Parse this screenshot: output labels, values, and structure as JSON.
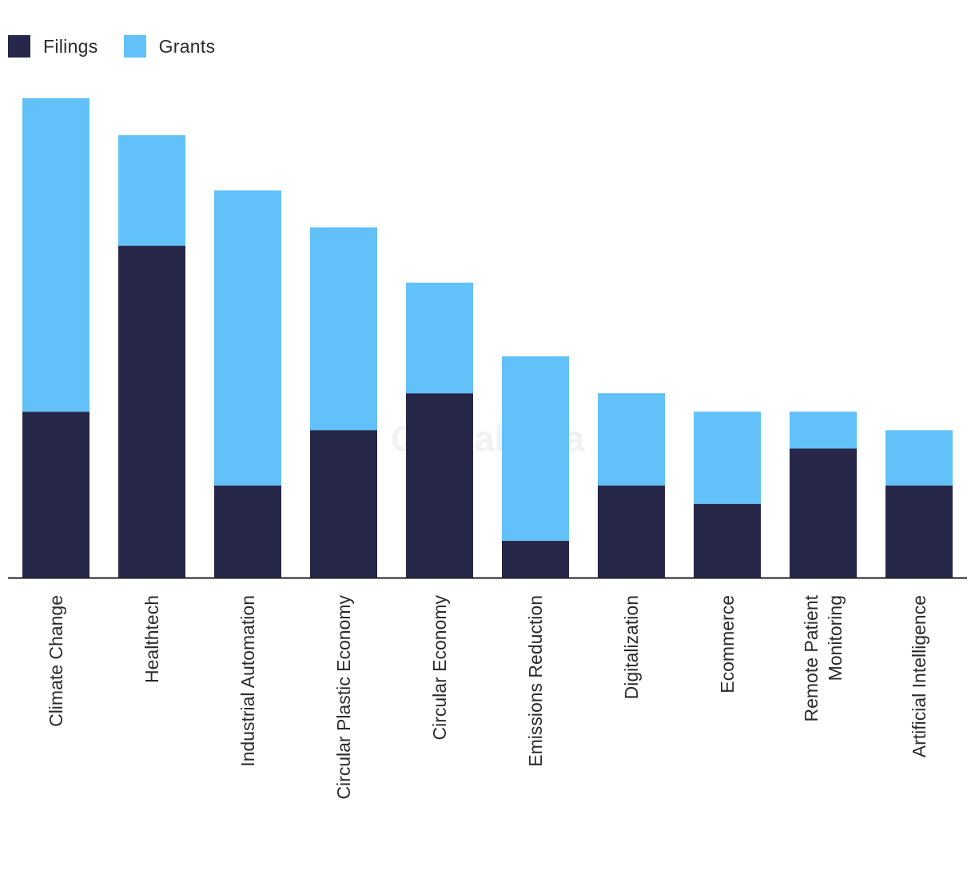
{
  "legend": {
    "series": [
      {
        "name": "Filings",
        "color": "#27274a"
      },
      {
        "name": "Grants",
        "color": "#62c1f8"
      }
    ]
  },
  "watermark": "GlobalData",
  "chart_data": {
    "type": "bar",
    "stacked": true,
    "title": "",
    "xlabel": "",
    "ylabel": "",
    "ylim": [
      0,
      26
    ],
    "grid": false,
    "legend_position": "top-left",
    "categories": [
      "Climate Change",
      "Healthtech",
      "Industrial Automation",
      "Circular Plastic Economy",
      "Circular Economy",
      "Emissions Reduction",
      "Digitalization",
      "Ecommerce",
      "Remote Patient Monitoring",
      "Artificial Intelligence"
    ],
    "category_display_lines": [
      [
        "Climate Change"
      ],
      [
        "Healthtech"
      ],
      [
        "Industrial Automation"
      ],
      [
        "Circular Plastic Economy"
      ],
      [
        "Circular Economy"
      ],
      [
        "Emissions Reduction"
      ],
      [
        "Digitalization"
      ],
      [
        "Ecommerce"
      ],
      [
        "Remote Patient",
        "Monitoring"
      ],
      [
        "Artificial Intelligence"
      ]
    ],
    "series": [
      {
        "name": "Filings",
        "color": "#27274a",
        "values": [
          9,
          18,
          5,
          8,
          10,
          2,
          5,
          4,
          7,
          5
        ]
      },
      {
        "name": "Grants",
        "color": "#62c1f8",
        "values": [
          17,
          6,
          16,
          11,
          6,
          10,
          5,
          5,
          2,
          3
        ]
      }
    ]
  }
}
